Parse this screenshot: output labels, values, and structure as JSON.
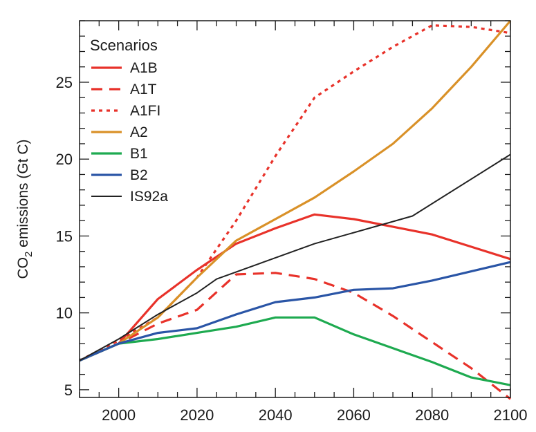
{
  "chart_data": {
    "type": "line",
    "title": "",
    "xlabel": "",
    "ylabel": "CO",
    "ylabel_subscript": "2",
    "ylabel_suffix": " emissions (Gt C)",
    "xlim": [
      1990,
      2100
    ],
    "ylim": [
      4.5,
      29
    ],
    "xticks": [
      2000,
      2020,
      2040,
      2060,
      2080,
      2100
    ],
    "yticks": [
      5,
      10,
      15,
      20,
      25
    ],
    "legend_title": "Scenarios",
    "legend_position": "top-left",
    "series": [
      {
        "name": "A1B",
        "color": "#e8322a",
        "dash": "solid",
        "x": [
          1990,
          2000,
          2010,
          2020,
          2030,
          2040,
          2050,
          2060,
          2070,
          2080,
          2090,
          2100
        ],
        "y": [
          6.9,
          8.0,
          10.9,
          12.8,
          14.5,
          15.5,
          16.4,
          16.1,
          15.6,
          15.1,
          14.3,
          13.5
        ]
      },
      {
        "name": "A1T",
        "color": "#e8322a",
        "dash": "dashed",
        "x": [
          1990,
          2000,
          2010,
          2020,
          2030,
          2040,
          2050,
          2060,
          2070,
          2080,
          2090,
          2100
        ],
        "y": [
          6.9,
          8.0,
          9.3,
          10.2,
          12.5,
          12.6,
          12.2,
          11.3,
          9.8,
          8.1,
          6.4,
          4.4
        ]
      },
      {
        "name": "A1FI",
        "color": "#e8322a",
        "dash": "dotted",
        "x": [
          1990,
          2000,
          2010,
          2020,
          2030,
          2040,
          2050,
          2060,
          2070,
          2080,
          2090,
          2100
        ],
        "y": [
          6.9,
          8.2,
          9.7,
          12.3,
          16.0,
          20.2,
          24.0,
          25.7,
          27.3,
          28.7,
          28.6,
          28.2
        ]
      },
      {
        "name": "A2",
        "color": "#d99128",
        "dash": "solid",
        "x": [
          1990,
          2000,
          2010,
          2020,
          2030,
          2040,
          2050,
          2060,
          2070,
          2080,
          2090,
          2100
        ],
        "y": [
          6.9,
          8.0,
          9.7,
          12.3,
          14.7,
          16.1,
          17.5,
          19.2,
          21.0,
          23.3,
          26.0,
          29.0
        ]
      },
      {
        "name": "B1",
        "color": "#1eaa50",
        "dash": "solid",
        "x": [
          1990,
          2000,
          2010,
          2020,
          2030,
          2040,
          2050,
          2060,
          2070,
          2080,
          2090,
          2100
        ],
        "y": [
          6.9,
          8.0,
          8.3,
          8.7,
          9.1,
          9.7,
          9.7,
          8.6,
          7.7,
          6.8,
          5.8,
          5.3
        ]
      },
      {
        "name": "B2",
        "color": "#2a55a6",
        "dash": "solid",
        "x": [
          1990,
          2000,
          2010,
          2020,
          2030,
          2040,
          2050,
          2060,
          2070,
          2080,
          2090,
          2100
        ],
        "y": [
          6.9,
          8.0,
          8.7,
          9.0,
          9.9,
          10.7,
          11.0,
          11.5,
          11.6,
          12.1,
          12.7,
          13.3
        ]
      },
      {
        "name": "IS92a",
        "color": "#222222",
        "dash": "solid",
        "x": [
          1990,
          2000,
          2010,
          2020,
          2025,
          2050,
          2075,
          2100
        ],
        "y": [
          6.9,
          8.3,
          9.9,
          11.3,
          12.2,
          14.5,
          16.3,
          20.3
        ]
      }
    ]
  }
}
